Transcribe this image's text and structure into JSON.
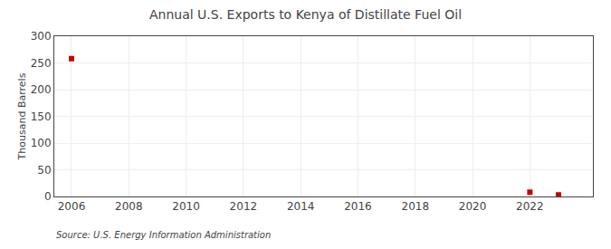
{
  "chart_data": {
    "type": "scatter",
    "title": "Annual U.S. Exports to Kenya of Distillate Fuel Oil",
    "ylabel": "Thousand Barrels",
    "annotation": "Source: U.S. Energy Information Administration",
    "x": [
      2006,
      2022,
      2023
    ],
    "values": [
      258,
      8,
      3
    ],
    "color": "#cc0000",
    "marker": "square",
    "xlim": [
      2005.4,
      2024.2
    ],
    "ylim": [
      0,
      300
    ],
    "xticks": [
      2006,
      2008,
      2010,
      2012,
      2014,
      2016,
      2018,
      2020,
      2022
    ],
    "yticks": [
      0,
      50,
      100,
      150,
      200,
      250,
      300
    ],
    "grid": true
  }
}
